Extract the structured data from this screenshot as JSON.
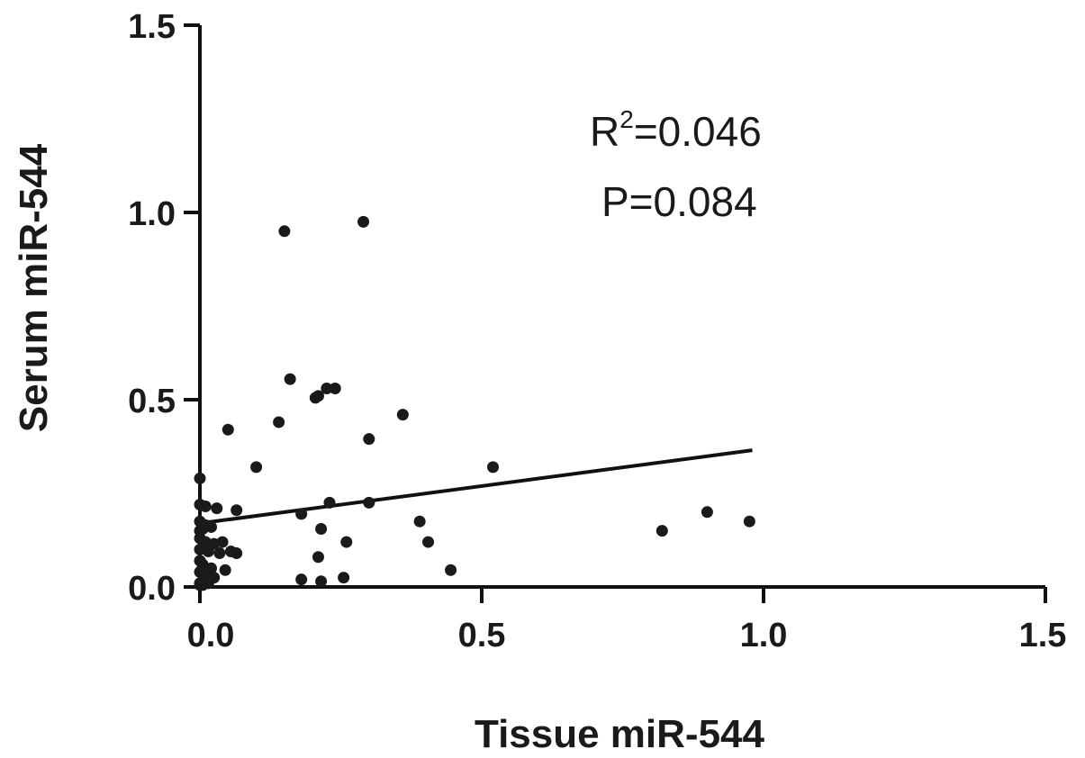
{
  "chart_data": {
    "type": "scatter",
    "xlabel": "Tissue miR-544",
    "ylabel": "Serum miR-544",
    "xlim": [
      0,
      1.5
    ],
    "ylim": [
      0,
      1.5
    ],
    "xticks": [
      "0.0",
      "0.5",
      "1.0",
      "1.5"
    ],
    "yticks": [
      "0.0",
      "0.5",
      "1.0",
      "1.5"
    ],
    "grid": false,
    "annotations": {
      "r2_prefix": "R",
      "r2_sup": "2",
      "r2_value": "=0.046",
      "p_text": "P=0.084"
    },
    "regression_line": {
      "x": [
        0.0,
        0.98
      ],
      "y": [
        0.17,
        0.365
      ]
    },
    "points": [
      {
        "x": 0.15,
        "y": 0.95
      },
      {
        "x": 0.29,
        "y": 0.975
      },
      {
        "x": 0.16,
        "y": 0.555
      },
      {
        "x": 0.205,
        "y": 0.505
      },
      {
        "x": 0.21,
        "y": 0.51
      },
      {
        "x": 0.225,
        "y": 0.53
      },
      {
        "x": 0.24,
        "y": 0.53
      },
      {
        "x": 0.05,
        "y": 0.42
      },
      {
        "x": 0.14,
        "y": 0.44
      },
      {
        "x": 0.36,
        "y": 0.46
      },
      {
        "x": 0.3,
        "y": 0.395
      },
      {
        "x": 0.1,
        "y": 0.32
      },
      {
        "x": 0.52,
        "y": 0.32
      },
      {
        "x": 0.0,
        "y": 0.29
      },
      {
        "x": 0.0,
        "y": 0.22
      },
      {
        "x": 0.01,
        "y": 0.215
      },
      {
        "x": 0.03,
        "y": 0.21
      },
      {
        "x": 0.065,
        "y": 0.205
      },
      {
        "x": 0.23,
        "y": 0.225
      },
      {
        "x": 0.3,
        "y": 0.225
      },
      {
        "x": 0.18,
        "y": 0.195
      },
      {
        "x": 0.0,
        "y": 0.175
      },
      {
        "x": 0.01,
        "y": 0.165
      },
      {
        "x": 0.02,
        "y": 0.16
      },
      {
        "x": 0.005,
        "y": 0.155
      },
      {
        "x": 0.215,
        "y": 0.155
      },
      {
        "x": 0.39,
        "y": 0.175
      },
      {
        "x": 0.82,
        "y": 0.15
      },
      {
        "x": 0.9,
        "y": 0.2
      },
      {
        "x": 0.975,
        "y": 0.175
      },
      {
        "x": 0.0,
        "y": 0.13
      },
      {
        "x": 0.01,
        "y": 0.12
      },
      {
        "x": 0.025,
        "y": 0.115
      },
      {
        "x": 0.04,
        "y": 0.12
      },
      {
        "x": 0.26,
        "y": 0.12
      },
      {
        "x": 0.405,
        "y": 0.12
      },
      {
        "x": 0.0,
        "y": 0.1
      },
      {
        "x": 0.015,
        "y": 0.095
      },
      {
        "x": 0.035,
        "y": 0.09
      },
      {
        "x": 0.055,
        "y": 0.095
      },
      {
        "x": 0.065,
        "y": 0.09
      },
      {
        "x": 0.21,
        "y": 0.08
      },
      {
        "x": 0.0,
        "y": 0.07
      },
      {
        "x": 0.005,
        "y": 0.06
      },
      {
        "x": 0.02,
        "y": 0.05
      },
      {
        "x": 0.045,
        "y": 0.045
      },
      {
        "x": 0.445,
        "y": 0.045
      },
      {
        "x": 0.0,
        "y": 0.04
      },
      {
        "x": 0.01,
        "y": 0.03
      },
      {
        "x": 0.025,
        "y": 0.025
      },
      {
        "x": 0.18,
        "y": 0.02
      },
      {
        "x": 0.255,
        "y": 0.025
      },
      {
        "x": 0.215,
        "y": 0.015
      },
      {
        "x": 0.0,
        "y": 0.01
      },
      {
        "x": 0.005,
        "y": 0.005
      },
      {
        "x": 0.015,
        "y": 0.01
      },
      {
        "x": 0.005,
        "y": 0.055
      },
      {
        "x": 0.0,
        "y": 0.15
      },
      {
        "x": 0.0,
        "y": 0.005
      }
    ]
  }
}
